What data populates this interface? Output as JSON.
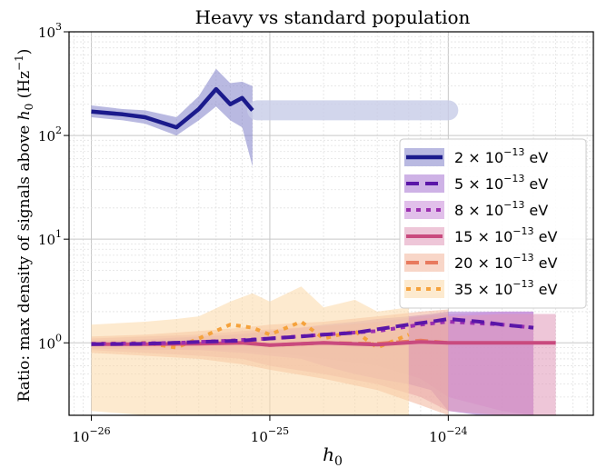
{
  "chart_data": {
    "type": "line",
    "title": "Heavy vs standard population",
    "xlabel_base": "h",
    "xlabel_sub": "0",
    "ylabel_prefix": "Ratio: max density of signals above ",
    "ylabel_var": "h",
    "ylabel_sub": "0",
    "ylabel_units_open": " (Hz",
    "ylabel_units_sup": "−1",
    "ylabel_units_close": ")",
    "xscale": "log",
    "yscale": "log",
    "xlim": [
      7.5e-27,
      6.5e-24
    ],
    "ylim": [
      0.2,
      1000
    ],
    "grid": true,
    "legend_position": "center-right",
    "x_ticks": [
      {
        "value": 1e-26,
        "base": "10",
        "exp": "−26"
      },
      {
        "value": 1e-25,
        "base": "10",
        "exp": "−25"
      },
      {
        "value": 1e-24,
        "base": "10",
        "exp": "−24"
      }
    ],
    "y_ticks": [
      {
        "value": 1,
        "base": "10",
        "exp": "0"
      },
      {
        "value": 10,
        "base": "10",
        "exp": "1"
      },
      {
        "value": 100,
        "base": "10",
        "exp": "2"
      },
      {
        "value": 1000,
        "base": "10",
        "exp": "3"
      }
    ],
    "series": [
      {
        "name": "2 × 10⁻¹³ eV",
        "mantissa": "2",
        "exp": "−13",
        "unit": "eV",
        "color": "#1b1a8c",
        "style": "solid",
        "width": 4.5,
        "x": [
          1e-26,
          1.5e-26,
          2e-26,
          3e-26,
          4e-26,
          5e-26,
          6e-26,
          7e-26,
          8e-26
        ],
        "y": [
          170,
          160,
          150,
          120,
          180,
          280,
          200,
          230,
          175
        ],
        "band_low": [
          150,
          140,
          130,
          100,
          140,
          190,
          140,
          120,
          50
        ],
        "band_high": [
          195,
          180,
          175,
          150,
          240,
          440,
          320,
          330,
          300
        ],
        "band_color": "#7f7fc8",
        "ghost": {
          "x": [
            8.5e-26,
            1e-24
          ],
          "y": [
            175,
            175
          ],
          "color": "#c8cce8"
        }
      },
      {
        "name": "5 × 10⁻¹³ eV",
        "mantissa": "5",
        "exp": "−13",
        "unit": "eV",
        "color": "#5a16a8",
        "style": "dashed",
        "width": 4,
        "x": [
          1e-26,
          2e-26,
          4e-26,
          7e-26,
          1e-25,
          1.5e-25,
          2e-25,
          3e-25,
          4e-25,
          6e-25,
          8e-25,
          1e-24,
          1.5e-24,
          2e-24,
          3e-24
        ],
        "y": [
          0.97,
          0.98,
          1.02,
          1.05,
          1.1,
          1.15,
          1.2,
          1.25,
          1.35,
          1.5,
          1.6,
          1.7,
          1.6,
          1.5,
          1.4
        ],
        "band_low": [
          0.88,
          0.86,
          0.85,
          0.8,
          0.75,
          0.7,
          0.6,
          0.5,
          0.45,
          0.4,
          0.35,
          0.22,
          0.2,
          0.2,
          0.2
        ],
        "band_high": [
          1.05,
          1.08,
          1.15,
          1.2,
          1.3,
          1.4,
          1.5,
          1.6,
          1.7,
          1.8,
          1.9,
          2.0,
          2.0,
          2.0,
          2.0
        ],
        "band_color": "#a572d2"
      },
      {
        "name": "8 × 10⁻¹³ eV",
        "mantissa": "8",
        "exp": "−13",
        "unit": "eV",
        "color": "#9b2fb0",
        "style": "dotted",
        "width": 4,
        "x": [
          1e-26,
          3e-26,
          6e-26,
          1e-25,
          2e-25,
          4e-25,
          7e-25,
          1e-24,
          2e-24,
          3e-24
        ],
        "y": [
          0.98,
          1.0,
          1.05,
          1.1,
          1.2,
          1.3,
          1.5,
          1.6,
          1.5,
          1.4
        ],
        "band_low": [
          0.9,
          0.88,
          0.85,
          0.8,
          0.7,
          0.6,
          0.45,
          0.3,
          0.22,
          0.2
        ],
        "band_high": [
          1.05,
          1.1,
          1.2,
          1.3,
          1.45,
          1.6,
          1.8,
          1.9,
          2.0,
          2.0
        ],
        "band_color": "#c98ad8"
      },
      {
        "name": "15 × 10⁻¹³ eV",
        "mantissa": "15",
        "exp": "−13",
        "unit": "eV",
        "color": "#c94a7e",
        "style": "solid",
        "width": 4,
        "x": [
          1e-26,
          2e-26,
          4e-26,
          7e-26,
          1e-25,
          2e-25,
          4e-25,
          7e-25,
          1e-24,
          2e-24,
          4e-24
        ],
        "y": [
          0.97,
          0.97,
          0.98,
          1.0,
          0.95,
          1.0,
          0.96,
          1.02,
          1.0,
          1.0,
          1.0
        ],
        "band_low": [
          0.85,
          0.8,
          0.75,
          0.7,
          0.6,
          0.5,
          0.4,
          0.3,
          0.22,
          0.2,
          0.2
        ],
        "band_high": [
          1.1,
          1.15,
          1.2,
          1.3,
          1.35,
          1.45,
          1.55,
          1.7,
          1.8,
          1.9,
          1.9
        ],
        "band_color": "#e098b8"
      },
      {
        "name": "20 × 10⁻¹³ eV",
        "mantissa": "20",
        "exp": "−13",
        "unit": "eV",
        "color": "#e87a5e",
        "style": "dashed",
        "width": 4,
        "x": [
          1e-26,
          2e-26,
          4e-26,
          7e-26,
          1e-25,
          2e-25,
          4e-25,
          7e-25,
          1e-24
        ],
        "y": [
          0.97,
          0.98,
          1.0,
          1.02,
          0.95,
          1.0,
          0.98,
          1.05,
          1.0
        ],
        "band_low": [
          0.8,
          0.75,
          0.7,
          0.62,
          0.55,
          0.45,
          0.35,
          0.25,
          0.2
        ],
        "band_high": [
          1.15,
          1.2,
          1.3,
          1.4,
          1.5,
          1.6,
          1.8,
          2.0,
          2.1
        ],
        "band_color": "#f3b49a"
      },
      {
        "name": "35 × 10⁻¹³ eV",
        "mantissa": "35",
        "exp": "−13",
        "unit": "eV",
        "color": "#f5a23c",
        "style": "dotted",
        "width": 4,
        "x": [
          1e-26,
          2e-26,
          3e-26,
          4e-26,
          6e-26,
          8e-26,
          1e-25,
          1.5e-25,
          2e-25,
          3e-25,
          4e-25,
          6e-25
        ],
        "y": [
          0.98,
          1.0,
          0.9,
          1.1,
          1.5,
          1.4,
          1.2,
          1.6,
          1.1,
          1.3,
          0.9,
          1.2
        ],
        "band_low": [
          0.22,
          0.2,
          0.2,
          0.2,
          0.2,
          0.2,
          0.2,
          0.2,
          0.2,
          0.2,
          0.2,
          0.2
        ],
        "band_high": [
          1.5,
          1.6,
          1.7,
          1.8,
          2.5,
          3.0,
          2.5,
          3.5,
          2.2,
          2.6,
          2.0,
          2.2
        ],
        "band_color": "#fcd9a8"
      }
    ]
  }
}
